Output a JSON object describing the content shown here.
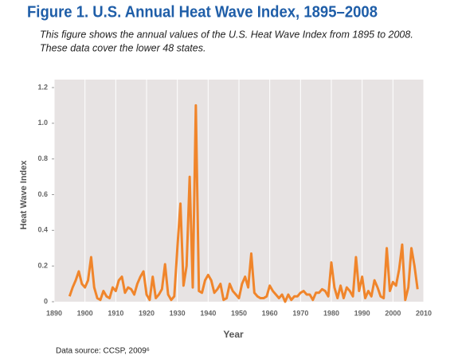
{
  "chart_data": {
    "type": "line",
    "title": "Figure 1. U.S. Annual Heat Wave Index, 1895–2008",
    "subtitle": [
      "This figure shows the annual values of the U.S. Heat Wave Index from 1895 to 2008.",
      "These data cover the lower 48 states."
    ],
    "xlabel": "Year",
    "ylabel": "Heat Wave Index",
    "source": "Data source: CCSP, 2009⁶",
    "xlim": [
      1890,
      2010
    ],
    "xticks": [
      1890,
      1900,
      1910,
      1920,
      1930,
      1940,
      1950,
      1960,
      1970,
      1980,
      1990,
      2000,
      2010
    ],
    "ylim": [
      0,
      1.2
    ],
    "yticks": [
      0,
      0.2,
      0.4,
      0.6,
      0.8,
      {
        "value": 1,
        "label": "1.0"
      },
      1.2
    ],
    "grid": true,
    "series": [
      {
        "color": "#f0852b",
        "x": [
          1895,
          1896,
          1897,
          1898,
          1899,
          1900,
          1901,
          1902,
          1903,
          1904,
          1905,
          1906,
          1907,
          1908,
          1909,
          1910,
          1911,
          1912,
          1913,
          1914,
          1915,
          1916,
          1917,
          1918,
          1919,
          1920,
          1921,
          1922,
          1923,
          1924,
          1925,
          1926,
          1927,
          1928,
          1929,
          1930,
          1931,
          1932,
          1933,
          1934,
          1935,
          1936,
          1937,
          1938,
          1939,
          1940,
          1941,
          1942,
          1943,
          1944,
          1945,
          1946,
          1947,
          1948,
          1949,
          1950,
          1951,
          1952,
          1953,
          1954,
          1955,
          1956,
          1957,
          1958,
          1959,
          1960,
          1961,
          1962,
          1963,
          1964,
          1965,
          1966,
          1967,
          1968,
          1969,
          1970,
          1971,
          1972,
          1973,
          1974,
          1975,
          1976,
          1977,
          1978,
          1979,
          1980,
          1981,
          1982,
          1983,
          1984,
          1985,
          1986,
          1987,
          1988,
          1989,
          1990,
          1991,
          1992,
          1993,
          1994,
          1995,
          1996,
          1997,
          1998,
          1999,
          2000,
          2001,
          2002,
          2003,
          2004,
          2005,
          2006,
          2007,
          2008
        ],
        "values": [
          0.03,
          0.08,
          0.12,
          0.17,
          0.1,
          0.08,
          0.12,
          0.25,
          0.08,
          0.02,
          0.01,
          0.06,
          0.03,
          0.02,
          0.08,
          0.06,
          0.12,
          0.14,
          0.05,
          0.08,
          0.07,
          0.04,
          0.1,
          0.14,
          0.17,
          0.04,
          0.01,
          0.14,
          0.02,
          0.04,
          0.07,
          0.21,
          0.04,
          0.01,
          0.03,
          0.3,
          0.55,
          0.09,
          0.2,
          0.7,
          0.08,
          1.1,
          0.06,
          0.05,
          0.12,
          0.15,
          0.12,
          0.05,
          0.07,
          0.1,
          0.01,
          0.02,
          0.1,
          0.06,
          0.04,
          0.02,
          0.1,
          0.14,
          0.08,
          0.27,
          0.05,
          0.03,
          0.02,
          0.02,
          0.03,
          0.09,
          0.06,
          0.04,
          0.02,
          0.04,
          0.0,
          0.04,
          0.01,
          0.03,
          0.03,
          0.05,
          0.06,
          0.04,
          0.04,
          0.01,
          0.05,
          0.05,
          0.07,
          0.06,
          0.03,
          0.22,
          0.08,
          0.02,
          0.09,
          0.02,
          0.08,
          0.06,
          0.03,
          0.25,
          0.06,
          0.14,
          0.02,
          0.06,
          0.03,
          0.12,
          0.08,
          0.03,
          0.02,
          0.3,
          0.06,
          0.11,
          0.09,
          0.18,
          0.32,
          0.01,
          0.08,
          0.3,
          0.2,
          0.07
        ]
      }
    ]
  }
}
